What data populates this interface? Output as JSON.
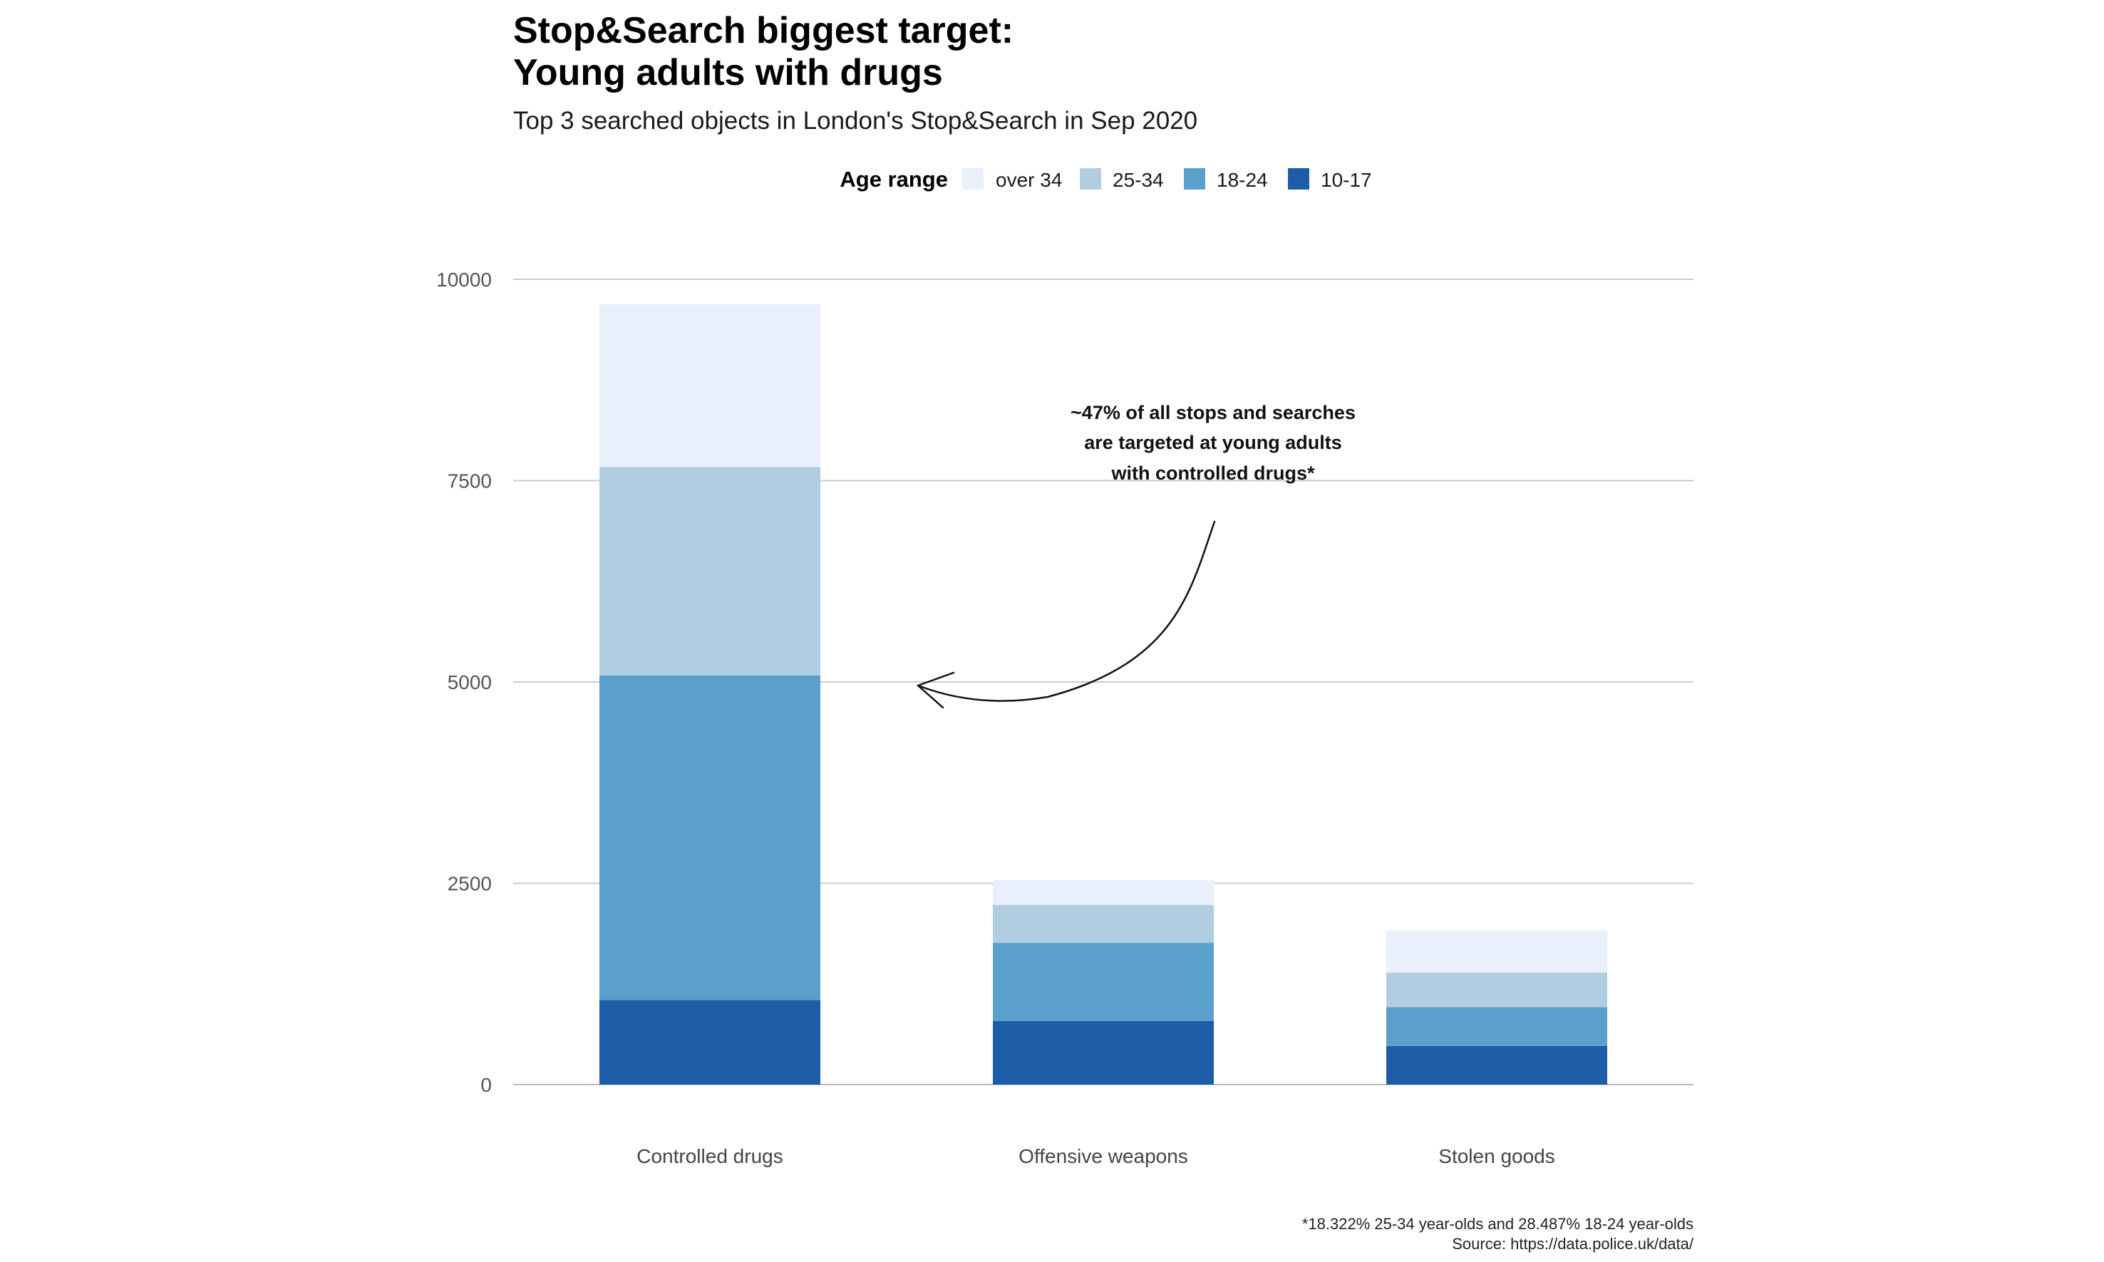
{
  "title_lines": [
    "Stop&Search biggest target:",
    "Young adults with drugs"
  ],
  "subtitle": "Top 3 searched objects in London's Stop&Search in Sep 2020",
  "legend": {
    "title": "Age range",
    "position": "top-center",
    "items": [
      {
        "label": "over 34",
        "color": "#e9effb"
      },
      {
        "label": "25-34",
        "color": "#b0cde2"
      },
      {
        "label": "18-24",
        "color": "#5b9fcb"
      },
      {
        "label": "10-17",
        "color": "#1d5ca7"
      }
    ]
  },
  "annotation": {
    "lines": [
      "~47% of all stops and searches",
      "are targeted at young adults",
      "with controlled drugs*"
    ]
  },
  "caption": {
    "lines": [
      "*18.322% 25-34 year-olds and 28.487% 18-24 year-olds",
      "Source: https://data.police.uk/data/"
    ]
  },
  "chart_data": {
    "type": "bar",
    "stacked": true,
    "categories": [
      "Controlled drugs",
      "Offensive weapons",
      "Stolen goods"
    ],
    "series": [
      {
        "name": "10-17",
        "color": "#1d5ca7",
        "values": [
          1050,
          790,
          480
        ]
      },
      {
        "name": "18-24",
        "color": "#5b9fcb",
        "values": [
          4030,
          970,
          480
        ]
      },
      {
        "name": "25-34",
        "color": "#b0cde2",
        "values": [
          2590,
          470,
          430
        ]
      },
      {
        "name": "over 34",
        "color": "#e9effb",
        "values": [
          2020,
          310,
          520
        ]
      }
    ],
    "ylim": [
      0,
      10000
    ],
    "yticks": [
      "0",
      "2500",
      "5000",
      "7500",
      "10000"
    ],
    "grid": true,
    "legend": "top-center"
  }
}
